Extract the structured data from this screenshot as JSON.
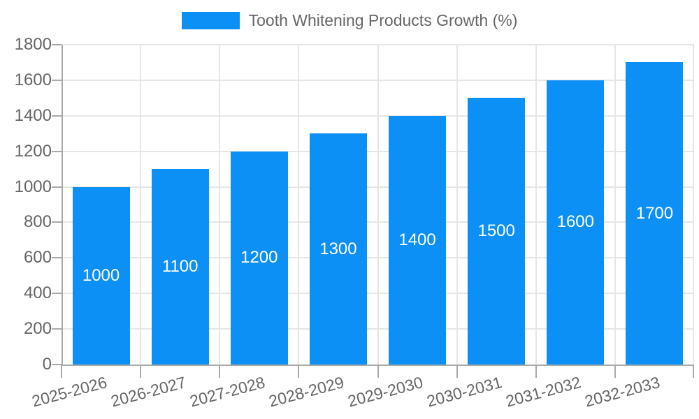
{
  "chart_data": {
    "type": "bar",
    "title": "Tooth Whitening Products Growth (%)",
    "categories": [
      "2025-2026",
      "2026-2027",
      "2027-2028",
      "2028-2029",
      "2029-2030",
      "2030-2031",
      "2031-2032",
      "2032-2033"
    ],
    "values": [
      1000,
      1100,
      1200,
      1300,
      1400,
      1500,
      1600,
      1700
    ],
    "xlabel": "",
    "ylabel": "",
    "ylim": [
      0,
      1800
    ],
    "ytick_step": 200,
    "grid": true,
    "legend_position": "top",
    "value_labels": "inside-center",
    "colors": {
      "bar": "#0d90f5",
      "bar_label": "#ffffff",
      "text": "#666666",
      "grid": "#e6e6e6",
      "axis": "#a9a9a9",
      "background": "#ffffff"
    }
  }
}
